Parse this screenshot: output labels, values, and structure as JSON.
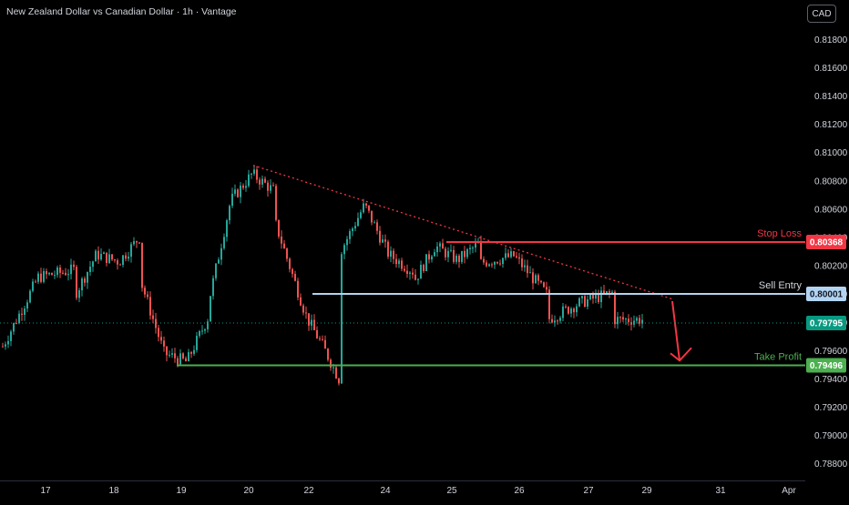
{
  "header": {
    "title": "New Zealand Dollar vs Canadian Dollar · 1h · Vantage",
    "currency": "CAD"
  },
  "colors": {
    "background": "#000000",
    "up": "#26a69a",
    "down": "#ef5350",
    "stop_loss": "#f23645",
    "sell_entry": "#b2d4f2",
    "take_profit": "#4caf50",
    "trendline": "#f23645",
    "current_price": "#089981",
    "axis_text": "#d1d4dc"
  },
  "chart_data": {
    "type": "candlestick",
    "y_axis": {
      "ticks": [
        "0.81800",
        "0.81600",
        "0.81400",
        "0.81200",
        "0.81000",
        "0.80800",
        "0.80600",
        "0.80400",
        "0.80200",
        "0.80000",
        "0.79800",
        "0.79600",
        "0.79400",
        "0.79200",
        "0.79000",
        "0.78800"
      ],
      "range": [
        0.7875,
        0.8196
      ]
    },
    "x_axis": {
      "ticks": [
        "17",
        "18",
        "19",
        "20",
        "22",
        "24",
        "25",
        "26",
        "27",
        "29",
        "31",
        "Apr"
      ]
    },
    "price_path": [
      [
        "17",
        0.7963
      ],
      [
        "17",
        0.8012
      ],
      [
        "17",
        0.8017
      ],
      [
        "18",
        0.7998
      ],
      [
        "18",
        0.8028
      ],
      [
        "18",
        0.8023
      ],
      [
        "18",
        0.8042
      ],
      [
        "19",
        0.8007
      ],
      [
        "19",
        0.7958
      ],
      [
        "19",
        0.7952
      ],
      [
        "19",
        0.7985
      ],
      [
        "20",
        0.7996
      ],
      [
        "20",
        0.8066
      ],
      [
        "20",
        0.8085
      ],
      [
        "20",
        0.8073
      ],
      [
        "22",
        0.8054
      ],
      [
        "22",
        0.8018
      ],
      [
        "22",
        0.7983
      ],
      [
        "22",
        0.7962
      ],
      [
        "22",
        0.7938
      ],
      [
        "24",
        0.803
      ],
      [
        "24",
        0.8063
      ],
      [
        "24",
        0.8028
      ],
      [
        "24",
        0.8016
      ],
      [
        "25",
        0.8008
      ],
      [
        "25",
        0.8034
      ],
      [
        "25",
        0.8024
      ],
      [
        "25",
        0.8036
      ],
      [
        "26",
        0.8022
      ],
      [
        "26",
        0.8027
      ],
      [
        "26",
        0.7999
      ],
      [
        "27",
        0.7982
      ],
      [
        "27",
        0.7994
      ],
      [
        "27",
        0.8001
      ],
      [
        "29",
        0.7982
      ],
      [
        "29",
        0.7982
      ]
    ],
    "levels": [
      {
        "label": "Stop Loss",
        "value": 0.80368,
        "value_text": "0.80368"
      },
      {
        "label": "Sell Entry",
        "value": 0.80001,
        "value_text": "0.80001"
      },
      {
        "label": "Take Profit",
        "value": 0.79496,
        "value_text": "0.79496"
      }
    ],
    "current_price": {
      "value": 0.79795,
      "value_text": "0.79795"
    },
    "trendline": {
      "start": [
        "20",
        0.8091
      ],
      "end": [
        "29",
        0.79965
      ],
      "style": "dotted"
    },
    "projection": {
      "direction": "down",
      "from": 0.7995,
      "to": 0.7953
    }
  }
}
